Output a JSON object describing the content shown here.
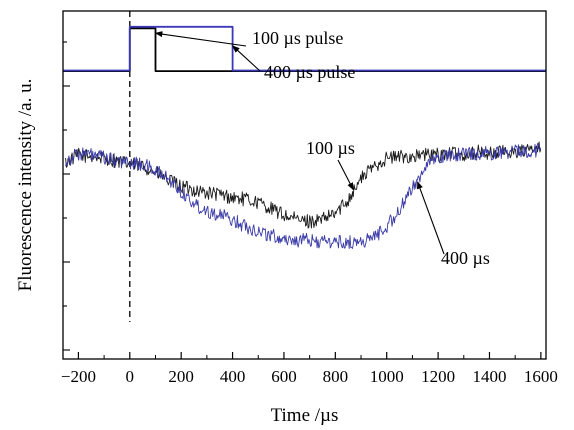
{
  "chart_data": {
    "type": "line",
    "xlabel": "Time /µs",
    "ylabel": "Fluorescence intensity /a. u.",
    "xlim": [
      -260,
      1620
    ],
    "ylim": [
      -0.05,
      1.05
    ],
    "x_ticks": [
      -200,
      0,
      200,
      400,
      600,
      800,
      1000,
      1200,
      1400,
      1600
    ],
    "x_tick_labels": [
      "−200",
      "0",
      "200",
      "400",
      "600",
      "800",
      "1000",
      "1200",
      "1400",
      "1600"
    ],
    "y_tick_labels": "none (unlabeled ticks)",
    "marker_line": {
      "x": 0,
      "style": "dashed"
    },
    "series": [
      {
        "name": "100 µs",
        "color": "#1a1a1a",
        "points": [
          [
            -250,
            0.57
          ],
          [
            -200,
            0.595
          ],
          [
            -150,
            0.59
          ],
          [
            -100,
            0.585
          ],
          [
            -50,
            0.575
          ],
          [
            0,
            0.565
          ],
          [
            50,
            0.56
          ],
          [
            100,
            0.54
          ],
          [
            150,
            0.515
          ],
          [
            200,
            0.495
          ],
          [
            250,
            0.485
          ],
          [
            300,
            0.475
          ],
          [
            350,
            0.47
          ],
          [
            400,
            0.46
          ],
          [
            450,
            0.455
          ],
          [
            500,
            0.445
          ],
          [
            550,
            0.425
          ],
          [
            600,
            0.405
          ],
          [
            650,
            0.39
          ],
          [
            700,
            0.385
          ],
          [
            750,
            0.39
          ],
          [
            800,
            0.41
          ],
          [
            850,
            0.455
          ],
          [
            900,
            0.52
          ],
          [
            950,
            0.56
          ],
          [
            1000,
            0.585
          ],
          [
            1050,
            0.59
          ],
          [
            1100,
            0.59
          ],
          [
            1150,
            0.595
          ],
          [
            1200,
            0.595
          ],
          [
            1250,
            0.6
          ],
          [
            1300,
            0.595
          ],
          [
            1350,
            0.605
          ],
          [
            1400,
            0.6
          ],
          [
            1450,
            0.605
          ],
          [
            1500,
            0.605
          ],
          [
            1550,
            0.61
          ],
          [
            1600,
            0.615
          ]
        ]
      },
      {
        "name": "400 µs",
        "color": "#3a3aa8",
        "points": [
          [
            -250,
            0.575
          ],
          [
            -200,
            0.6
          ],
          [
            -150,
            0.595
          ],
          [
            -100,
            0.585
          ],
          [
            -50,
            0.575
          ],
          [
            0,
            0.57
          ],
          [
            50,
            0.565
          ],
          [
            100,
            0.545
          ],
          [
            150,
            0.52
          ],
          [
            200,
            0.48
          ],
          [
            250,
            0.44
          ],
          [
            300,
            0.42
          ],
          [
            350,
            0.405
          ],
          [
            400,
            0.39
          ],
          [
            450,
            0.37
          ],
          [
            500,
            0.355
          ],
          [
            550,
            0.34
          ],
          [
            600,
            0.33
          ],
          [
            650,
            0.325
          ],
          [
            700,
            0.325
          ],
          [
            750,
            0.32
          ],
          [
            800,
            0.32
          ],
          [
            850,
            0.318
          ],
          [
            900,
            0.32
          ],
          [
            950,
            0.335
          ],
          [
            1000,
            0.37
          ],
          [
            1050,
            0.42
          ],
          [
            1100,
            0.49
          ],
          [
            1150,
            0.56
          ],
          [
            1200,
            0.585
          ],
          [
            1250,
            0.595
          ],
          [
            1300,
            0.6
          ],
          [
            1350,
            0.6
          ],
          [
            1400,
            0.6
          ],
          [
            1450,
            0.605
          ],
          [
            1500,
            0.605
          ],
          [
            1550,
            0.61
          ],
          [
            1600,
            0.61
          ]
        ]
      },
      {
        "name": "100 µs pulse",
        "color": "#000000",
        "points": [
          [
            -260,
            0.86
          ],
          [
            0,
            0.86
          ],
          [
            0,
            0.995
          ],
          [
            100,
            0.995
          ],
          [
            100,
            0.86
          ],
          [
            1620,
            0.86
          ]
        ]
      },
      {
        "name": "400 µs pulse",
        "color": "#3a3ab8",
        "points": [
          [
            -260,
            0.862
          ],
          [
            0,
            0.862
          ],
          [
            0,
            1.0
          ],
          [
            400,
            1.0
          ],
          [
            400,
            0.862
          ],
          [
            1620,
            0.862
          ]
        ]
      }
    ],
    "annotations": [
      {
        "text": "100 µs pulse",
        "arrow_to": [
          100,
          0.98
        ]
      },
      {
        "text": "400 µs pulse",
        "arrow_to": [
          400,
          0.94
        ]
      },
      {
        "text": "100 µs",
        "arrow_to": [
          870,
          0.485
        ]
      },
      {
        "text": "400 µs",
        "arrow_to": [
          1120,
          0.51
        ]
      }
    ]
  }
}
